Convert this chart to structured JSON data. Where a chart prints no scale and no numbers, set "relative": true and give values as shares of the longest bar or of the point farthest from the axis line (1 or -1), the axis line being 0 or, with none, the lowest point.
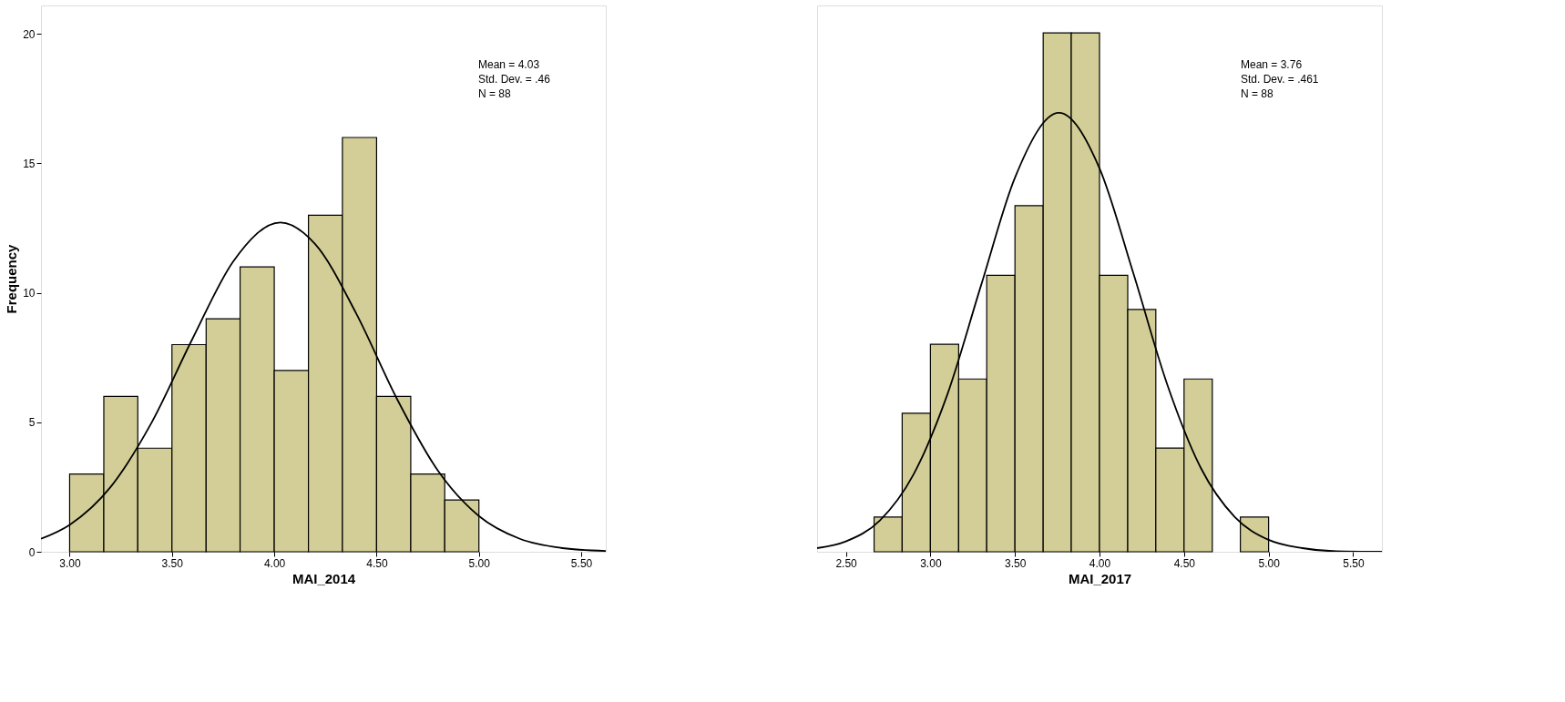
{
  "chart_data": [
    {
      "type": "histogram",
      "xlabel": "MAI_2014",
      "ylabel": "Frequency",
      "color": "#d3ce97",
      "bins": [
        3.0,
        3.167,
        3.333,
        3.5,
        3.667,
        3.833,
        4.0,
        4.167,
        4.333,
        4.5,
        4.667,
        4.833,
        5.0
      ],
      "values": [
        3,
        6,
        4,
        8,
        9,
        11,
        7,
        13,
        16,
        6,
        3,
        2
      ],
      "series": [
        {
          "type": "line",
          "color": "#000000",
          "x": [
            2.86,
            3.0,
            3.2,
            3.4,
            3.6,
            3.8,
            4.03,
            4.2,
            4.4,
            4.6,
            4.8,
            5.0,
            5.2,
            5.4,
            5.62
          ],
          "values": [
            0.5,
            1.04,
            2.5,
            4.98,
            8.22,
            11.22,
            12.72,
            11.88,
            9.21,
            5.9,
            3.13,
            1.38,
            0.5,
            0.15,
            0.03
          ]
        }
      ],
      "xlim": [
        2.86,
        5.62
      ],
      "ylim": [
        0,
        21.1
      ],
      "xticks": [
        {
          "value": 3.0,
          "label": "3.00"
        },
        {
          "value": 3.5,
          "label": "3.50"
        },
        {
          "value": 4.0,
          "label": "4.00"
        },
        {
          "value": 4.5,
          "label": "4.50"
        },
        {
          "value": 5.0,
          "label": "5.00"
        },
        {
          "value": 5.5,
          "label": "5.50"
        }
      ],
      "yticks": [
        0,
        5,
        10,
        15,
        20
      ],
      "annotations": [
        "Mean = 4.03",
        "Std. Dev. = .46",
        "N = 88"
      ]
    },
    {
      "type": "histogram",
      "xlabel": "MAI_2017",
      "color": "#d3ce97",
      "bins": [
        2.667,
        2.833,
        3.0,
        3.167,
        3.333,
        3.5,
        3.667,
        3.833,
        4.0,
        4.167,
        4.333,
        4.5,
        4.667,
        4.833,
        5.0
      ],
      "relative": true,
      "values": [
        0.067,
        0.267,
        0.4,
        0.333,
        0.533,
        0.667,
        1,
        1,
        0.533,
        0.467,
        0.2,
        0.333,
        null,
        0.067
      ],
      "series": [
        {
          "type": "line",
          "color": "#000000",
          "x": [
            2.33,
            2.5,
            2.7,
            2.9,
            3.1,
            3.3,
            3.5,
            3.76,
            4.0,
            4.2,
            4.4,
            4.6,
            4.8,
            5.0,
            5.2,
            5.4,
            5.67
          ],
          "values": [
            0.007,
            0.02,
            0.06,
            0.149,
            0.303,
            0.514,
            0.721,
            0.846,
            0.739,
            0.537,
            0.323,
            0.161,
            0.067,
            0.023,
            0.007,
            0.001,
            0.0
          ]
        }
      ],
      "xlim": [
        2.33,
        5.67
      ],
      "xticks": [
        {
          "value": 2.5,
          "label": "2.50"
        },
        {
          "value": 3.0,
          "label": "3.00"
        },
        {
          "value": 3.5,
          "label": "3.50"
        },
        {
          "value": 4.0,
          "label": "4.00"
        },
        {
          "value": 4.5,
          "label": "4.50"
        },
        {
          "value": 5.0,
          "label": "5.00"
        },
        {
          "value": 5.5,
          "label": "5.50"
        }
      ],
      "tick_labels": "x",
      "annotations": [
        "Mean = 3.76",
        "Std. Dev. = .461",
        "N = 88"
      ]
    }
  ]
}
